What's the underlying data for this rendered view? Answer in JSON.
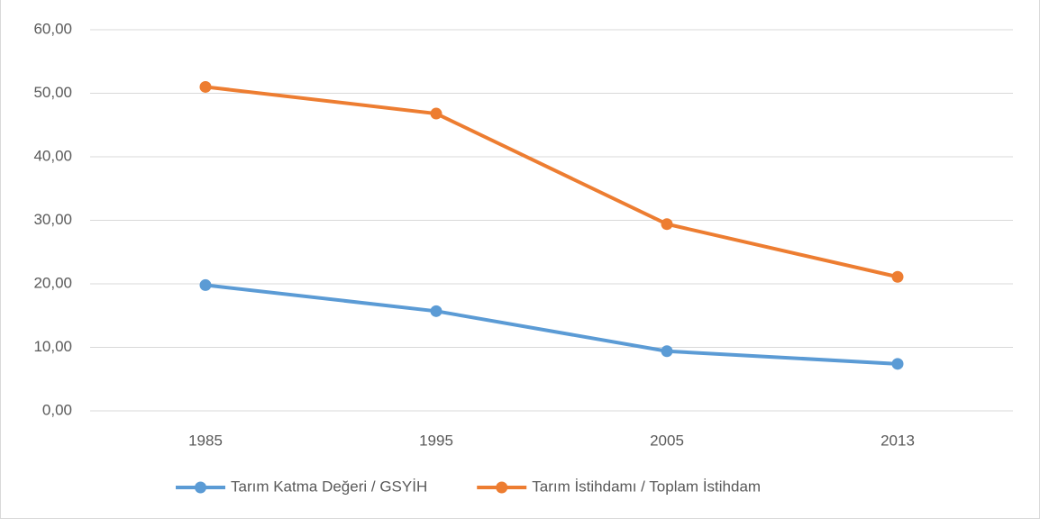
{
  "chart_data": {
    "type": "line",
    "categories": [
      "1985",
      "1995",
      "2005",
      "2013"
    ],
    "series": [
      {
        "name": "Tarım Katma Değeri / GSYİH",
        "color": "#5b9bd5",
        "values": [
          19.8,
          15.7,
          9.4,
          7.4
        ]
      },
      {
        "name": "Tarım İstihdamı / Toplam İstihdam",
        "color": "#ed7d31",
        "values": [
          51.0,
          46.8,
          29.4,
          21.1
        ]
      }
    ],
    "ylim": [
      0,
      60
    ],
    "yticks": [
      {
        "value": 0,
        "label": "0,00"
      },
      {
        "value": 10,
        "label": "10,00"
      },
      {
        "value": 20,
        "label": "20,00"
      },
      {
        "value": 30,
        "label": "30,00"
      },
      {
        "value": 40,
        "label": "40,00"
      },
      {
        "value": 50,
        "label": "50,00"
      },
      {
        "value": 60,
        "label": "60,00"
      }
    ],
    "grid": true,
    "legend": "bottom"
  }
}
